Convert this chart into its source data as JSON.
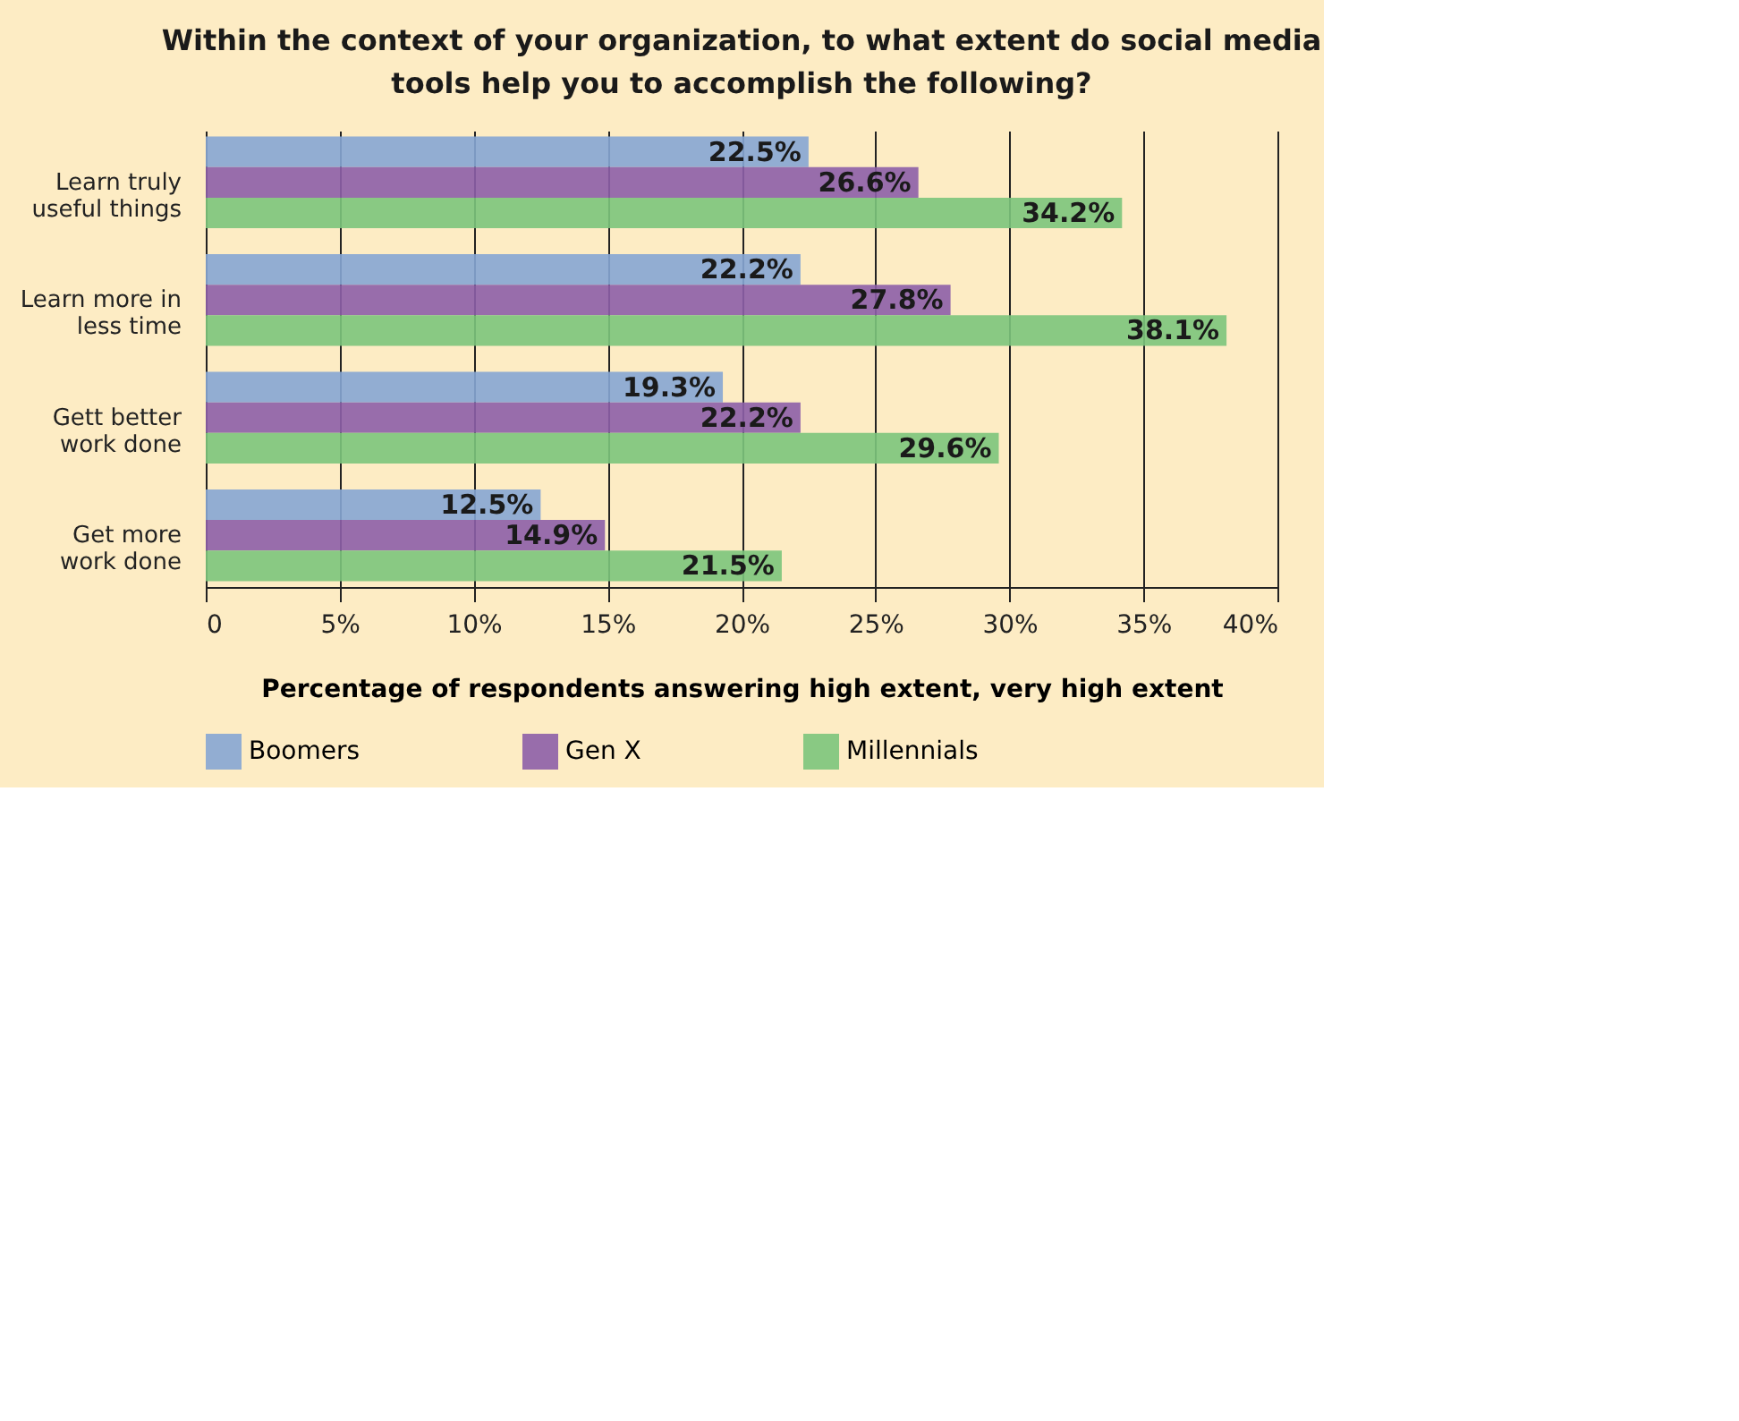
{
  "chart_data": {
    "type": "bar",
    "orientation": "horizontal",
    "title": "Within the context of your organization, to what extent do social media tools help you to accomplish the following?",
    "xlabel": "Percentage of respondents answering high extent, very high extent",
    "categories": [
      "Learn truly useful things",
      "Learn more in less time",
      "Gett better work done",
      "Get more work done"
    ],
    "series": [
      {
        "name": "Boomers",
        "color": "#86a6d4",
        "values": [
          22.5,
          22.2,
          19.3,
          12.5
        ]
      },
      {
        "name": "Gen X",
        "color": "#8d5fa8",
        "values": [
          26.6,
          27.8,
          22.2,
          14.9
        ]
      },
      {
        "name": "Millennials",
        "color": "#7cc57c",
        "values": [
          34.2,
          38.1,
          29.6,
          21.5
        ]
      }
    ],
    "xlim": [
      0,
      40
    ],
    "xticks": [
      0,
      {
        "value": 5,
        "label": "5%"
      },
      {
        "value": 10,
        "label": "10%"
      },
      {
        "value": 15,
        "label": "15%"
      },
      {
        "value": 20,
        "label": "20%"
      },
      {
        "value": 25,
        "label": "25%"
      },
      {
        "value": 30,
        "label": "30%"
      },
      {
        "value": 35,
        "label": "35%"
      },
      {
        "value": 40,
        "label": "40%"
      }
    ],
    "value_labels": [
      [
        "22.5%",
        "22.2%",
        "19.3%",
        "12.5%"
      ],
      [
        "26.6%",
        "27.8%",
        "22.2%",
        "14.9%"
      ],
      [
        "34.2%",
        "38.1%",
        "29.6%",
        "21.5%"
      ]
    ],
    "grid": "x",
    "legend": "bottom"
  }
}
